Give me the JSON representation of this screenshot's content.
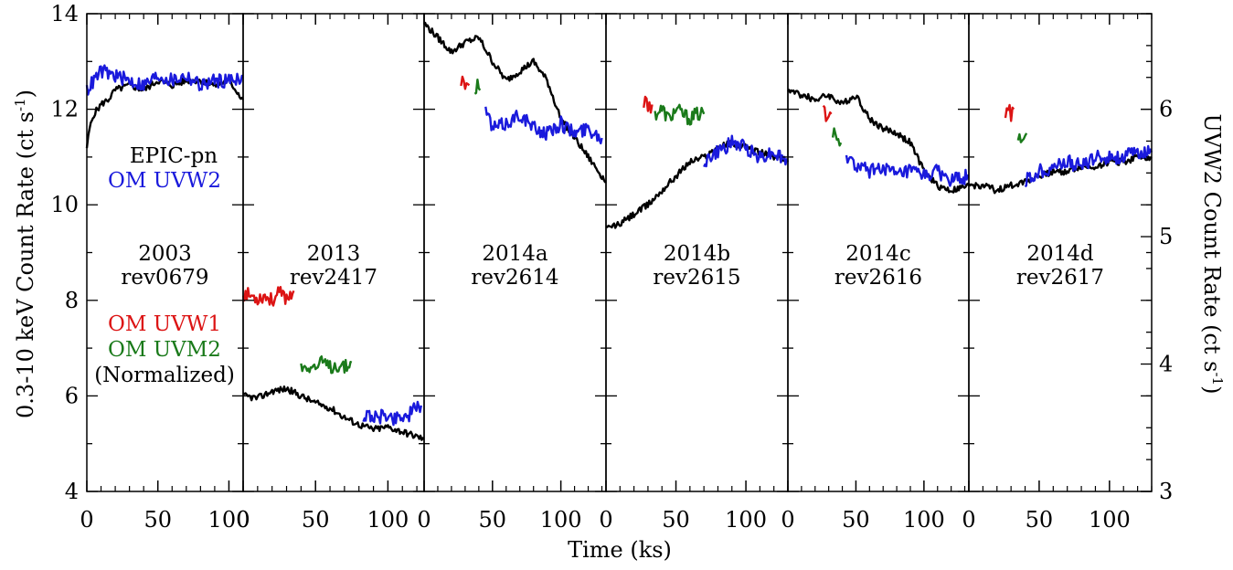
{
  "chart_data": {
    "type": "line",
    "xlabel": "Time (ks)",
    "ylabel_left": "0.3-10 keV Count Rate (ct s",
    "ylabel_left_sup": "-1",
    "ylabel_left_tail": ")",
    "ylabel_right": "UVW2 Count Rate (ct s",
    "ylabel_right_sup": "-1",
    "ylabel_right_tail": ")",
    "ylim_left": [
      4,
      14
    ],
    "ylim_right": [
      3,
      6.75
    ],
    "yticks_left": [
      4,
      6,
      8,
      10,
      12,
      14
    ],
    "yticks_right": [
      3,
      4,
      5,
      6
    ],
    "grid": false,
    "legend": [
      {
        "label": "EPIC-pn",
        "color": "#000000"
      },
      {
        "label": "OM UVW2",
        "color": "#1a1adc"
      },
      {
        "label": "OM UVW1",
        "color": "#dc1414"
      },
      {
        "label": "OM UVM2",
        "color": "#1a7a1a"
      },
      {
        "label": "(Normalized)",
        "color": "#000000"
      }
    ],
    "colors": {
      "epic": "#000000",
      "uvw2": "#1a1adc",
      "uvw1": "#dc1414",
      "uvm2": "#1a7a1a"
    },
    "panels": [
      {
        "title": "2003",
        "rev": "rev0679",
        "xlim": [
          0,
          110
        ],
        "xticks": [
          0,
          50,
          100
        ],
        "series": [
          {
            "name": "EPIC-pn",
            "color": "#000000",
            "x": [
              0,
              2,
              5,
              10,
              15,
              20,
              30,
              40,
              50,
              60,
              70,
              80,
              90,
              100,
              105,
              110
            ],
            "y": [
              11.2,
              11.6,
              11.9,
              12.1,
              12.2,
              12.4,
              12.5,
              12.4,
              12.6,
              12.5,
              12.6,
              12.6,
              12.5,
              12.6,
              12.4,
              12.2
            ]
          },
          {
            "name": "OM UVW2",
            "color": "#1a1adc",
            "x": [
              0,
              5,
              10,
              20,
              30,
              40,
              50,
              60,
              70,
              80,
              90,
              100,
              110
            ],
            "y": [
              12.4,
              12.6,
              12.8,
              12.7,
              12.6,
              12.5,
              12.7,
              12.6,
              12.7,
              12.5,
              12.6,
              12.6,
              12.7
            ]
          }
        ]
      },
      {
        "title": "2013",
        "rev": "rev2417",
        "xlim": [
          0,
          125
        ],
        "xticks": [
          0,
          50,
          100
        ],
        "series": [
          {
            "name": "EPIC-pn",
            "color": "#000000",
            "x": [
              0,
              10,
              20,
              30,
              40,
              50,
              60,
              70,
              80,
              90,
              100,
              110,
              120,
              125
            ],
            "y": [
              6.0,
              5.95,
              6.1,
              6.15,
              6.0,
              5.85,
              5.75,
              5.55,
              5.4,
              5.3,
              5.35,
              5.25,
              5.15,
              5.1
            ]
          },
          {
            "name": "OM UVW1",
            "color": "#dc1414",
            "x": [
              0,
              5,
              10,
              15,
              20,
              25,
              30,
              35
            ],
            "y": [
              8.15,
              8.1,
              8.05,
              8.1,
              8.0,
              8.15,
              8.05,
              8.2
            ]
          },
          {
            "name": "OM UVM2",
            "color": "#1a7a1a",
            "x": [
              40,
              45,
              50,
              55,
              60,
              65,
              70,
              75
            ],
            "y": [
              6.6,
              6.65,
              6.6,
              6.7,
              6.6,
              6.65,
              6.6,
              6.7
            ]
          },
          {
            "name": "OM UVW2",
            "color": "#1a1adc",
            "x": [
              83,
              88,
              93,
              98,
              103,
              108,
              113,
              118,
              123
            ],
            "y": [
              5.55,
              5.6,
              5.5,
              5.65,
              5.5,
              5.6,
              5.55,
              5.7,
              5.8
            ]
          }
        ]
      },
      {
        "title": "2014a",
        "rev": "rev2614",
        "xlim": [
          0,
          133
        ],
        "xticks": [
          0,
          50,
          100
        ],
        "series": [
          {
            "name": "EPIC-pn",
            "color": "#000000",
            "x": [
              0,
              10,
              20,
              30,
              40,
              50,
              60,
              70,
              80,
              90,
              100,
              110,
              120,
              130,
              133
            ],
            "y": [
              13.8,
              13.5,
              13.2,
              13.4,
              13.5,
              13.0,
              12.6,
              12.8,
              13.0,
              12.6,
              11.8,
              11.4,
              11.0,
              10.6,
              10.5
            ]
          },
          {
            "name": "OM UVW1",
            "color": "#dc1414",
            "x": [
              27,
              29,
              31,
              33
            ],
            "y": [
              12.4,
              12.7,
              12.4,
              12.5
            ]
          },
          {
            "name": "OM UVM2",
            "color": "#1a7a1a",
            "x": [
              37,
              39,
              41
            ],
            "y": [
              12.4,
              12.5,
              12.4
            ]
          },
          {
            "name": "OM UVW2",
            "color": "#1a1adc",
            "x": [
              45,
              50,
              60,
              70,
              80,
              90,
              100,
              110,
              120,
              130
            ],
            "y": [
              12.0,
              11.6,
              11.7,
              11.9,
              11.6,
              11.5,
              11.7,
              11.5,
              11.6,
              11.4
            ]
          }
        ]
      },
      {
        "title": "2014b",
        "rev": "rev2615",
        "xlim": [
          0,
          130
        ],
        "xticks": [
          0,
          50,
          100
        ],
        "series": [
          {
            "name": "EPIC-pn",
            "color": "#000000",
            "x": [
              0,
              10,
              20,
              30,
              40,
              50,
              60,
              70,
              80,
              90,
              100,
              110,
              120,
              130
            ],
            "y": [
              9.5,
              9.6,
              9.8,
              10.0,
              10.3,
              10.6,
              10.9,
              11.0,
              11.2,
              11.3,
              11.2,
              11.1,
              11.0,
              10.9
            ]
          },
          {
            "name": "OM UVW1",
            "color": "#dc1414",
            "x": [
              27,
              29,
              31,
              33
            ],
            "y": [
              12.1,
              12.2,
              12.0,
              12.1
            ]
          },
          {
            "name": "OM UVM2",
            "color": "#1a7a1a",
            "x": [
              35,
              40,
              45,
              50,
              55,
              60,
              65,
              70
            ],
            "y": [
              11.9,
              12.0,
              11.8,
              12.0,
              11.9,
              11.8,
              11.9,
              11.9
            ]
          },
          {
            "name": "OM UVW2",
            "color": "#1a1adc",
            "x": [
              70,
              80,
              90,
              100,
              110,
              120,
              130
            ],
            "y": [
              10.9,
              11.1,
              11.3,
              11.2,
              11.0,
              11.1,
              10.9
            ]
          }
        ]
      },
      {
        "title": "2014c",
        "rev": "rev2616",
        "xlim": [
          0,
          133
        ],
        "xticks": [
          0,
          50,
          100
        ],
        "series": [
          {
            "name": "EPIC-pn",
            "color": "#000000",
            "x": [
              0,
              10,
              20,
              30,
              40,
              50,
              60,
              70,
              80,
              90,
              100,
              110,
              120,
              133
            ],
            "y": [
              12.4,
              12.3,
              12.2,
              12.3,
              12.1,
              12.3,
              11.8,
              11.6,
              11.5,
              11.3,
              10.7,
              10.4,
              10.3,
              10.4
            ]
          },
          {
            "name": "OM UVW1",
            "color": "#dc1414",
            "x": [
              26,
              28,
              30,
              32
            ],
            "y": [
              12.0,
              11.9,
              12.0,
              11.9
            ]
          },
          {
            "name": "OM UVM2",
            "color": "#1a7a1a",
            "x": [
              33,
              35,
              37,
              39
            ],
            "y": [
              11.5,
              11.4,
              11.4,
              11.3
            ]
          },
          {
            "name": "OM UVW2",
            "color": "#1a1adc",
            "x": [
              43,
              50,
              60,
              70,
              80,
              90,
              100,
              110,
              120,
              133
            ],
            "y": [
              11.0,
              10.8,
              10.7,
              10.8,
              10.6,
              10.7,
              10.6,
              10.7,
              10.5,
              10.6
            ]
          }
        ]
      },
      {
        "title": "2014d",
        "rev": "rev2617",
        "xlim": [
          0,
          130
        ],
        "xticks": [
          0,
          50,
          100
        ],
        "series": [
          {
            "name": "EPIC-pn",
            "color": "#000000",
            "x": [
              0,
              10,
              20,
              30,
              40,
              50,
              60,
              70,
              80,
              90,
              100,
              110,
              120,
              130
            ],
            "y": [
              10.4,
              10.4,
              10.3,
              10.4,
              10.5,
              10.6,
              10.7,
              10.7,
              10.8,
              10.8,
              10.9,
              10.9,
              11.0,
              11.0
            ]
          },
          {
            "name": "OM UVW1",
            "color": "#dc1414",
            "x": [
              26,
              28,
              30,
              32
            ],
            "y": [
              11.9,
              12.0,
              11.9,
              12.0
            ]
          },
          {
            "name": "OM UVM2",
            "color": "#1a7a1a",
            "x": [
              35,
              37,
              39,
              41
            ],
            "y": [
              11.3,
              11.4,
              11.4,
              11.5
            ]
          },
          {
            "name": "OM UVW2",
            "color": "#1a1adc",
            "x": [
              40,
              50,
              60,
              70,
              80,
              90,
              100,
              110,
              120,
              130
            ],
            "y": [
              10.5,
              10.7,
              10.8,
              10.9,
              10.8,
              11.0,
              11.0,
              11.0,
              11.1,
              11.1
            ]
          }
        ]
      }
    ]
  }
}
